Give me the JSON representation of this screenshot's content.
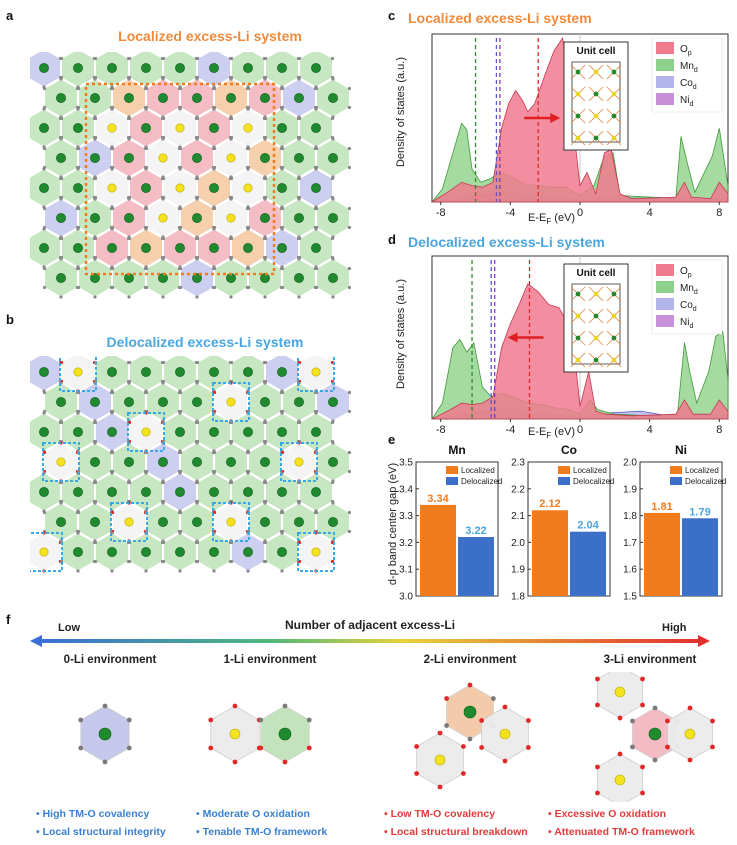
{
  "panels": {
    "a": {
      "label": "a",
      "title": "Localized excess-Li system"
    },
    "b": {
      "label": "b",
      "title": "Delocalized excess-Li system"
    },
    "c": {
      "label": "c",
      "title": "Localized excess-Li system"
    },
    "d": {
      "label": "d",
      "title": "Delocalized excess-Li system"
    },
    "e": {
      "label": "e"
    },
    "f": {
      "label": "f"
    }
  },
  "dos_common": {
    "ylabel": "Density of states (a.u.)",
    "xlabel": "E-E",
    "xlabel_sub": "F",
    "xlabel_unit": " (eV)",
    "unit_cell": "Unit cell",
    "xticks": [
      "-8",
      "-4",
      "0",
      "4",
      "8"
    ],
    "legend": [
      {
        "main": "O",
        "sub": "p",
        "color": "#f07a8e"
      },
      {
        "main": "Mn",
        "sub": "d",
        "color": "#8fd18a"
      },
      {
        "main": "Co",
        "sub": "d",
        "color": "#b4b4ec"
      },
      {
        "main": "Ni",
        "sub": "d",
        "color": "#c890d8"
      }
    ]
  },
  "colors": {
    "orange": "#f08a3c",
    "blue": "#4aa6e0",
    "localized": "#f07c1e",
    "delocalized": "#3c6fc8",
    "red": "#e23b3b"
  },
  "chart_data": [
    {
      "type": "area",
      "title": "Localized excess-Li system",
      "xlabel": "E-EF (eV)",
      "ylabel": "Density of states (a.u.)",
      "xlim": [
        -8.5,
        8.5
      ],
      "vlines": {
        "Mn": -6.0,
        "Co": -4.8,
        "Ni": -4.6,
        "O": -2.4
      },
      "arrow": "right",
      "series": [
        {
          "name": "Op",
          "points": [
            [
              -8.5,
              0
            ],
            [
              -7.6,
              0.06
            ],
            [
              -6.8,
              0.12
            ],
            [
              -6.2,
              0.1
            ],
            [
              -5.6,
              0.09
            ],
            [
              -5.0,
              0.12
            ],
            [
              -4.5,
              0.45
            ],
            [
              -4.1,
              0.6
            ],
            [
              -3.7,
              0.68
            ],
            [
              -3.3,
              0.62
            ],
            [
              -3.0,
              0.55
            ],
            [
              -2.6,
              0.6
            ],
            [
              -2.0,
              0.78
            ],
            [
              -1.5,
              0.92
            ],
            [
              -1.0,
              1.0
            ],
            [
              -0.6,
              0.75
            ],
            [
              -0.3,
              0.38
            ],
            [
              0.0,
              0.1
            ],
            [
              0.4,
              0.18
            ],
            [
              0.9,
              0.05
            ],
            [
              1.4,
              0.3
            ],
            [
              1.8,
              0.32
            ],
            [
              2.3,
              0.05
            ],
            [
              3.0,
              0.02
            ],
            [
              5.5,
              0.03
            ],
            [
              6.0,
              0.12
            ],
            [
              6.4,
              0.03
            ],
            [
              7.5,
              0.02
            ],
            [
              8.0,
              0.12
            ],
            [
              8.5,
              0.05
            ]
          ]
        },
        {
          "name": "Mnd",
          "points": [
            [
              -8.5,
              0
            ],
            [
              -7.9,
              0.08
            ],
            [
              -7.3,
              0.3
            ],
            [
              -6.8,
              0.48
            ],
            [
              -6.5,
              0.44
            ],
            [
              -6.2,
              0.2
            ],
            [
              -5.7,
              0.12
            ],
            [
              -5.2,
              0.14
            ],
            [
              -4.6,
              0.18
            ],
            [
              -4.0,
              0.16
            ],
            [
              -3.2,
              0.11
            ],
            [
              -2.4,
              0.1
            ],
            [
              -1.6,
              0.09
            ],
            [
              -0.8,
              0.09
            ],
            [
              0.0,
              0.04
            ],
            [
              0.8,
              0.1
            ],
            [
              1.4,
              0.28
            ],
            [
              1.9,
              0.3
            ],
            [
              2.3,
              0.04
            ],
            [
              5.5,
              0.02
            ],
            [
              5.8,
              0.4
            ],
            [
              6.2,
              0.22
            ],
            [
              6.6,
              0.06
            ],
            [
              7.6,
              0.28
            ],
            [
              8.0,
              0.45
            ],
            [
              8.5,
              0.1
            ]
          ]
        },
        {
          "name": "Cod",
          "points": [
            [
              -8.5,
              0
            ],
            [
              -7.0,
              0.02
            ],
            [
              -6.0,
              0.03
            ],
            [
              -5.0,
              0.05
            ],
            [
              -4.5,
              0.07
            ],
            [
              -3.5,
              0.04
            ],
            [
              -2.0,
              0.03
            ],
            [
              0.0,
              0.01
            ],
            [
              1.0,
              0.03
            ],
            [
              2.0,
              0.02
            ],
            [
              4.0,
              0.03
            ],
            [
              6.0,
              0.02
            ],
            [
              8.5,
              0.02
            ]
          ]
        },
        {
          "name": "Nid",
          "points": [
            [
              -8.5,
              0
            ],
            [
              -7.0,
              0.02
            ],
            [
              -6.0,
              0.04
            ],
            [
              -5.0,
              0.05
            ],
            [
              -4.0,
              0.05
            ],
            [
              -3.0,
              0.03
            ],
            [
              -2.0,
              0.02
            ],
            [
              0.0,
              0.01
            ],
            [
              1.0,
              0.03
            ],
            [
              2.0,
              0.02
            ],
            [
              8.5,
              0.01
            ]
          ]
        }
      ]
    },
    {
      "type": "area",
      "title": "Delocalized excess-Li system",
      "xlabel": "E-EF (eV)",
      "ylabel": "Density of states (a.u.)",
      "xlim": [
        -8.5,
        8.5
      ],
      "vlines": {
        "Mn": -6.2,
        "Co": -5.1,
        "Ni": -4.9,
        "O": -2.9
      },
      "arrow": "left",
      "series": [
        {
          "name": "Op",
          "points": [
            [
              -8.5,
              0
            ],
            [
              -7.6,
              0.05
            ],
            [
              -6.8,
              0.1
            ],
            [
              -6.2,
              0.09
            ],
            [
              -5.6,
              0.1
            ],
            [
              -5.0,
              0.14
            ],
            [
              -4.5,
              0.45
            ],
            [
              -4.0,
              0.6
            ],
            [
              -3.5,
              0.72
            ],
            [
              -3.0,
              0.85
            ],
            [
              -2.4,
              0.8
            ],
            [
              -1.8,
              0.72
            ],
            [
              -1.2,
              0.7
            ],
            [
              -0.7,
              0.6
            ],
            [
              -0.3,
              0.4
            ],
            [
              0.0,
              0.08
            ],
            [
              0.5,
              0.3
            ],
            [
              0.9,
              0.05
            ],
            [
              1.5,
              0.03
            ],
            [
              3.0,
              0.02
            ],
            [
              5.5,
              0.03
            ],
            [
              6.0,
              0.12
            ],
            [
              6.5,
              0.03
            ],
            [
              7.5,
              0.03
            ],
            [
              8.0,
              0.12
            ],
            [
              8.5,
              0.05
            ]
          ]
        },
        {
          "name": "Mnd",
          "points": [
            [
              -8.5,
              0
            ],
            [
              -7.9,
              0.1
            ],
            [
              -7.3,
              0.45
            ],
            [
              -6.9,
              0.5
            ],
            [
              -6.5,
              0.42
            ],
            [
              -6.1,
              0.48
            ],
            [
              -5.6,
              0.2
            ],
            [
              -5.1,
              0.14
            ],
            [
              -4.5,
              0.16
            ],
            [
              -3.8,
              0.14
            ],
            [
              -3.0,
              0.1
            ],
            [
              -2.2,
              0.09
            ],
            [
              -1.4,
              0.07
            ],
            [
              -0.6,
              0.06
            ],
            [
              0.0,
              0.03
            ],
            [
              0.6,
              0.12
            ],
            [
              1.0,
              0.06
            ],
            [
              2.0,
              0.03
            ],
            [
              4.0,
              0.02
            ],
            [
              5.6,
              0.03
            ],
            [
              6.0,
              0.48
            ],
            [
              6.3,
              0.3
            ],
            [
              6.7,
              0.1
            ],
            [
              7.4,
              0.3
            ],
            [
              7.8,
              0.52
            ],
            [
              8.2,
              0.55
            ],
            [
              8.5,
              0.25
            ]
          ]
        },
        {
          "name": "Cod",
          "points": [
            [
              -8.5,
              0
            ],
            [
              -7.0,
              0.02
            ],
            [
              -6.0,
              0.03
            ],
            [
              -5.0,
              0.05
            ],
            [
              -4.5,
              0.08
            ],
            [
              -3.5,
              0.05
            ],
            [
              -2.0,
              0.03
            ],
            [
              0.0,
              0.01
            ],
            [
              1.0,
              0.03
            ],
            [
              2.0,
              0.04
            ],
            [
              3.5,
              0.05
            ],
            [
              4.0,
              0.04
            ],
            [
              5.0,
              0.02
            ],
            [
              8.5,
              0.02
            ]
          ]
        },
        {
          "name": "Nid",
          "points": [
            [
              -8.5,
              0
            ],
            [
              -7.0,
              0.02
            ],
            [
              -6.0,
              0.04
            ],
            [
              -5.0,
              0.06
            ],
            [
              -4.0,
              0.05
            ],
            [
              -3.0,
              0.03
            ],
            [
              -2.0,
              0.02
            ],
            [
              0.0,
              0.01
            ],
            [
              1.0,
              0.03
            ],
            [
              2.0,
              0.02
            ],
            [
              8.5,
              0.01
            ]
          ]
        }
      ]
    },
    {
      "type": "bar",
      "ylabel": "d-p band center gap (eV)",
      "legend": [
        "Localized",
        "Delocalized"
      ],
      "groups": [
        {
          "name": "Mn",
          "values": [
            3.34,
            3.22
          ],
          "labels": [
            "3.34",
            "3.22"
          ],
          "ylim": [
            3.0,
            3.5
          ],
          "ticks": [
            "3.0",
            "3.1",
            "3.2",
            "3.3",
            "3.4",
            "3.5"
          ]
        },
        {
          "name": "Co",
          "values": [
            2.12,
            2.04
          ],
          "labels": [
            "2.12",
            "2.04"
          ],
          "ylim": [
            1.8,
            2.3
          ],
          "ticks": [
            "1.8",
            "1.9",
            "2.0",
            "2.1",
            "2.2",
            "2.3"
          ]
        },
        {
          "name": "Ni",
          "values": [
            1.81,
            1.79
          ],
          "labels": [
            "1.81",
            "1.79"
          ],
          "ylim": [
            1.5,
            2.0
          ],
          "ticks": [
            "1.5",
            "1.6",
            "1.7",
            "1.8",
            "1.9",
            "2.0"
          ]
        }
      ]
    }
  ],
  "panel_f": {
    "arrow_title": "Number of adjacent excess-Li",
    "low": "Low",
    "high": "High",
    "envs": [
      "0-Li environment",
      "1-Li environment",
      "2-Li environment",
      "3-Li environment"
    ],
    "bullets": [
      [
        "High TM-O covalency",
        "Local structural integrity"
      ],
      [
        "Moderate O oxidation",
        "Tenable TM-O framework"
      ],
      [
        "Low TM-O covalency",
        "Local structural breakdown"
      ],
      [
        "Excessive O oxidation",
        "Attenuated TM-O framework"
      ]
    ]
  }
}
